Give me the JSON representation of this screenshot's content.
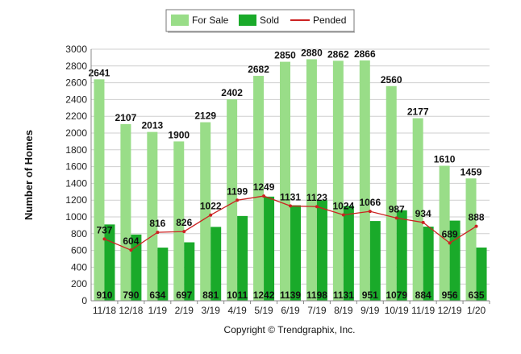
{
  "chart_data": {
    "type": "bar",
    "ylabel": "Number of Homes",
    "xlabel": "",
    "ylim": [
      0,
      3000
    ],
    "yticks": [
      0,
      200,
      400,
      600,
      800,
      1000,
      1200,
      1400,
      1600,
      1800,
      2000,
      2200,
      2400,
      2600,
      2800,
      3000
    ],
    "grid": true,
    "legend_position": "top-center",
    "categories": [
      "11/18",
      "12/18",
      "1/19",
      "2/19",
      "3/19",
      "4/19",
      "5/19",
      "6/19",
      "7/19",
      "8/19",
      "9/19",
      "10/19",
      "11/19",
      "12/19",
      "1/20"
    ],
    "series": [
      {
        "name": "For Sale",
        "kind": "bar",
        "color": "#99dd88",
        "values": [
          2641,
          2107,
          2013,
          1900,
          2129,
          2402,
          2682,
          2850,
          2880,
          2862,
          2866,
          2560,
          2177,
          1610,
          1459
        ]
      },
      {
        "name": "Sold",
        "kind": "bar",
        "color": "#1aaa2a",
        "values": [
          910,
          790,
          634,
          697,
          881,
          1011,
          1242,
          1139,
          1198,
          1131,
          951,
          1079,
          884,
          956,
          635
        ]
      },
      {
        "name": "Pended",
        "kind": "line",
        "color": "#cc2222",
        "values": [
          737,
          604,
          816,
          826,
          1022,
          1199,
          1249,
          1131,
          1123,
          1024,
          1066,
          987,
          934,
          689,
          888
        ]
      }
    ]
  },
  "footer": {
    "copyright": "Copyright © Trendgraphix, Inc."
  }
}
